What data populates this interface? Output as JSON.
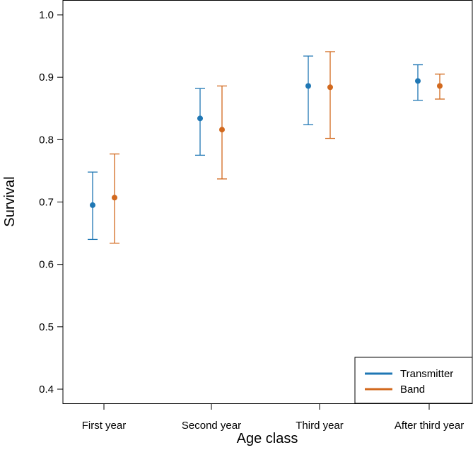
{
  "chart_data": {
    "type": "scatter",
    "title": "",
    "xlabel": "Age class",
    "ylabel": "Survival",
    "categories": [
      "First year",
      "Second year",
      "Third year",
      "After third year"
    ],
    "ylim": [
      0.4,
      1.0
    ],
    "yticks": [
      "0.4",
      "0.5",
      "0.6",
      "0.7",
      "0.8",
      "0.9",
      "1.0"
    ],
    "grid": false,
    "legend_position": "bottom-right",
    "series": [
      {
        "name": "Transmitter",
        "color": "#1f77b4",
        "values": [
          0.695,
          0.834,
          0.886,
          0.894
        ],
        "lower": [
          0.64,
          0.775,
          0.824,
          0.863
        ],
        "upper": [
          0.748,
          0.882,
          0.934,
          0.92
        ]
      },
      {
        "name": "Band",
        "color": "#d2691e",
        "values": [
          0.707,
          0.816,
          0.884,
          0.886
        ],
        "lower": [
          0.634,
          0.737,
          0.802,
          0.865
        ],
        "upper": [
          0.777,
          0.886,
          0.941,
          0.905
        ]
      }
    ]
  }
}
